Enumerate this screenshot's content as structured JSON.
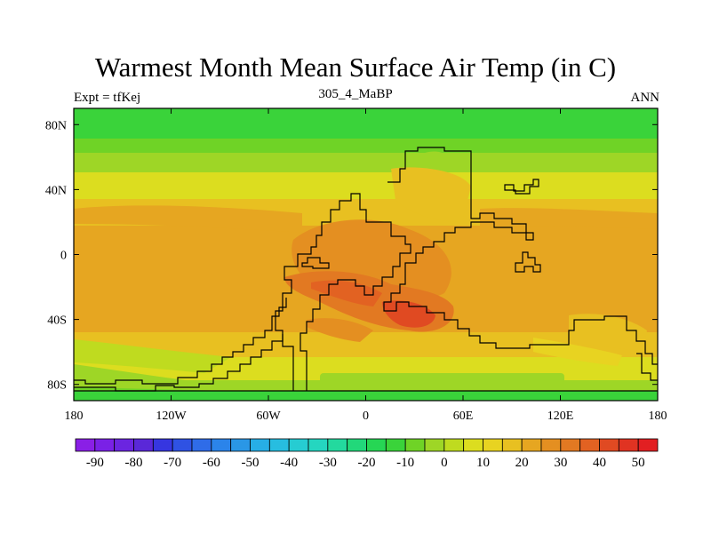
{
  "title": "Warmest Month Mean Surface Air Temp (in C)",
  "subtitle": "305_4_MaBP",
  "left_label": "Expt = tfKej",
  "right_label": "ANN",
  "map": {
    "x_ticks": [
      "180",
      "120W",
      "60W",
      "0",
      "60E",
      "120E",
      "180"
    ],
    "y_ticks": [
      "80N",
      "40N",
      "0",
      "40S",
      "80S"
    ],
    "x_range": [
      -180,
      180
    ],
    "y_range": [
      -90,
      90
    ]
  },
  "colorbar": {
    "labels": [
      "-90",
      "-80",
      "-70",
      "-60",
      "-50",
      "-40",
      "-30",
      "-20",
      "-10",
      "0",
      "10",
      "20",
      "30",
      "40",
      "50"
    ],
    "colors": [
      "#8a1fe6",
      "#7a21e6",
      "#6b25e0",
      "#5a28d8",
      "#3636e0",
      "#2f52e3",
      "#2f6ce8",
      "#2b84ea",
      "#2a97e6",
      "#27aee6",
      "#27bde0",
      "#26ccd2",
      "#25d6c0",
      "#23d99e",
      "#22d87a",
      "#26d654",
      "#3ad33a",
      "#6fd326",
      "#9ed626",
      "#bfdb1f",
      "#dcdd1f",
      "#e8d321",
      "#e8c021",
      "#e6a621",
      "#e48f21",
      "#e27922",
      "#e26222",
      "#e04a22",
      "#e03322",
      "#e21f22"
    ]
  }
}
